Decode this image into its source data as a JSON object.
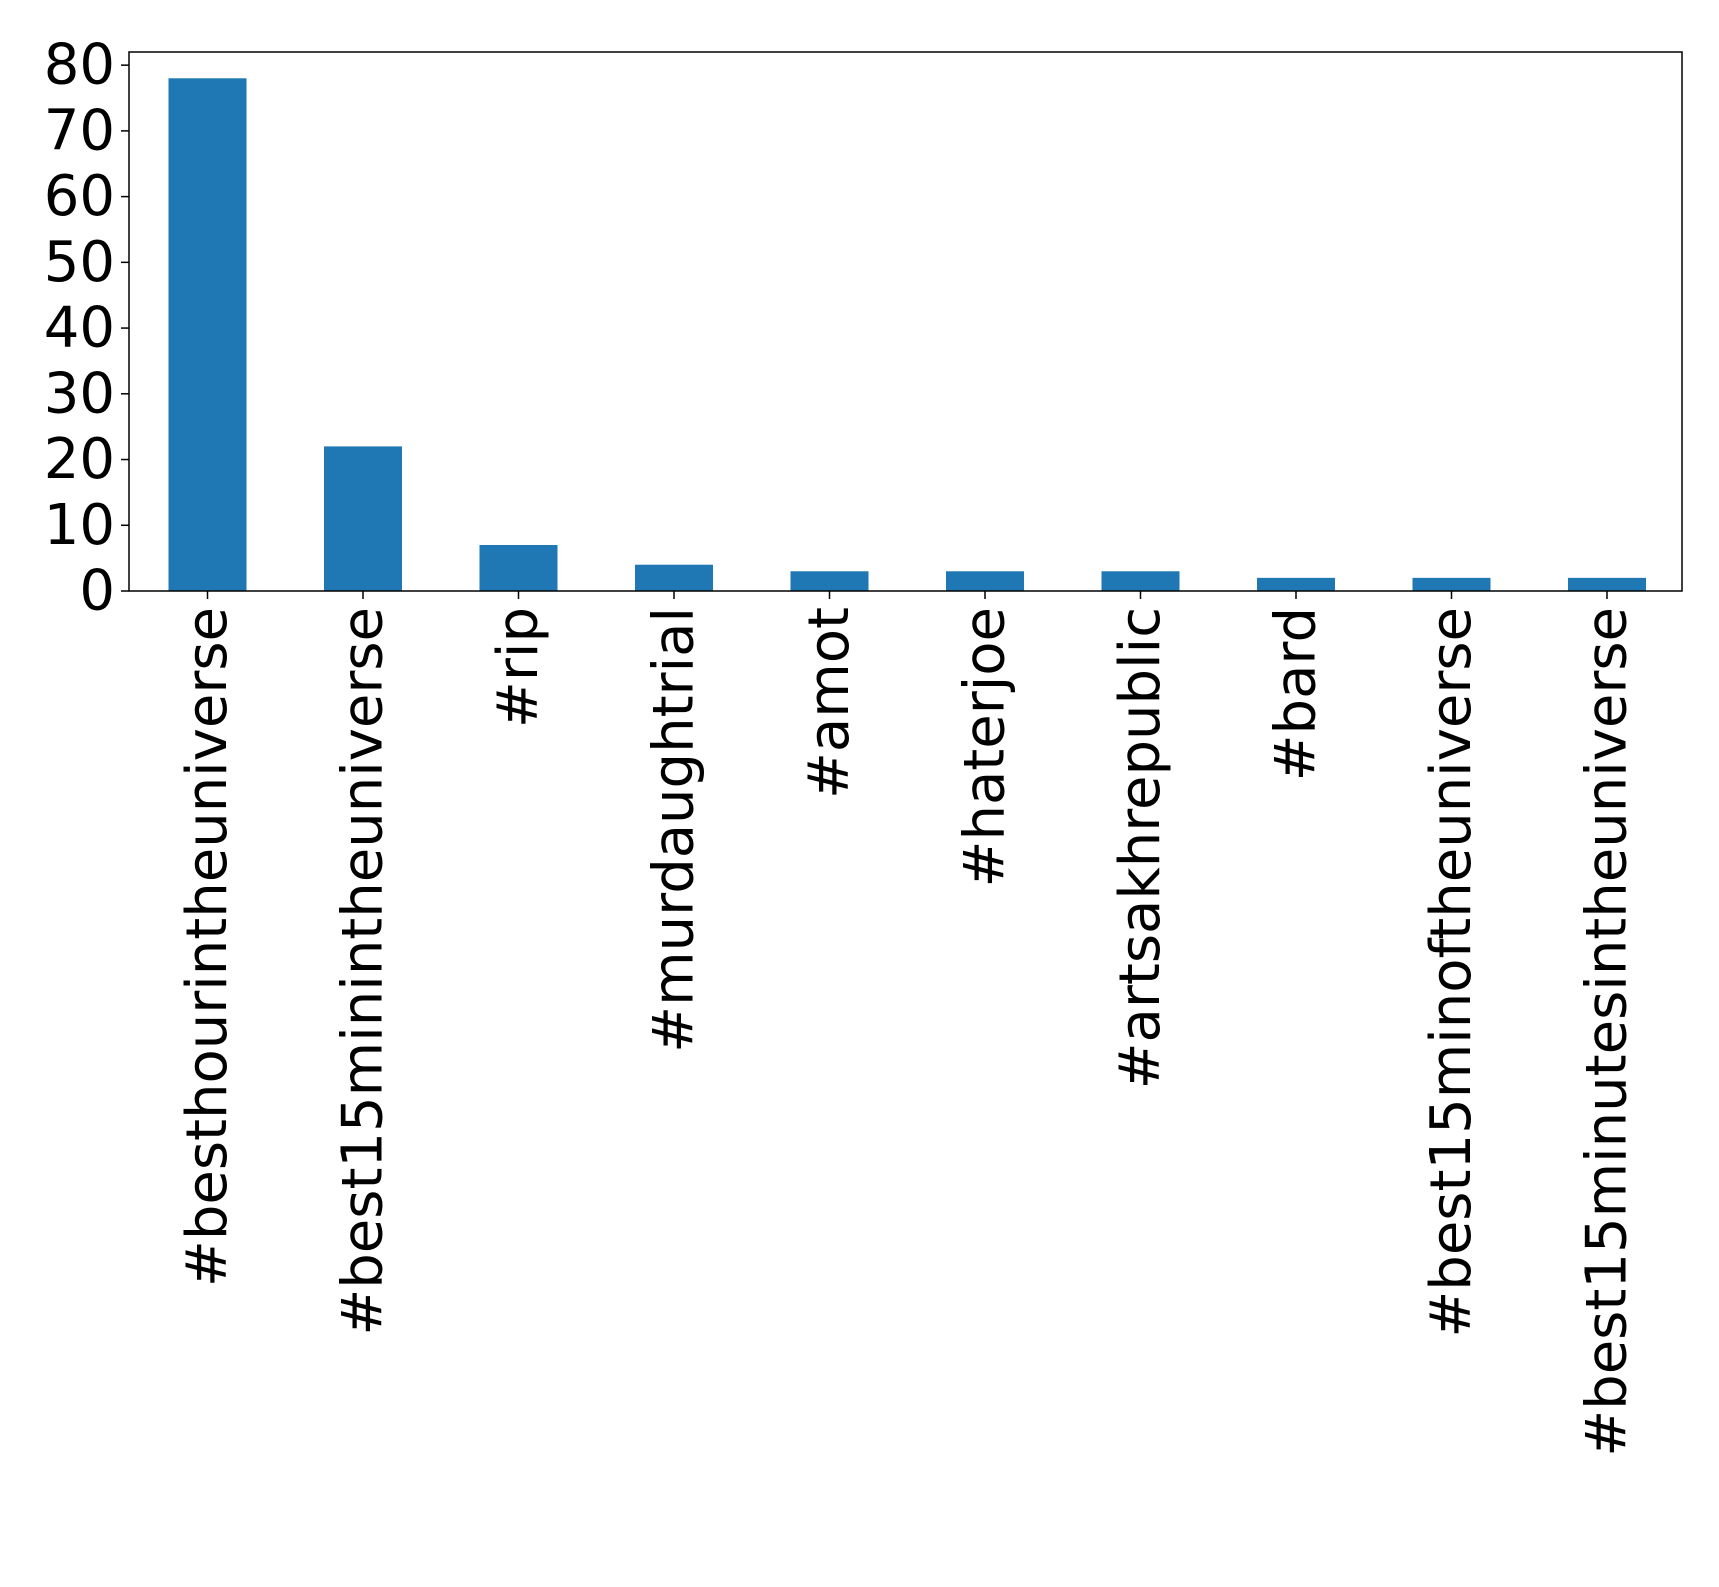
{
  "chart_data": {
    "type": "bar",
    "title": "",
    "xlabel": "",
    "ylabel": "",
    "categories": [
      "#besthourintheuniverse",
      "#best15minintheuniverse",
      "#rip",
      "#murdaughtrial",
      "#amot",
      "#haterjoe",
      "#artsakhrepublic",
      "#bard",
      "#best15minoftheuniverse",
      "#best15minutesintheuniverse"
    ],
    "values": [
      78,
      22,
      7,
      4,
      3,
      3,
      3,
      2,
      2,
      2
    ],
    "ylim": [
      0,
      82
    ],
    "yticks": [
      "0",
      "10",
      "20",
      "30",
      "40",
      "50",
      "60",
      "70",
      "80"
    ],
    "bar_color": "#1f77b4",
    "grid": false,
    "legend": "none",
    "x_tick_rotation": "vertical"
  }
}
